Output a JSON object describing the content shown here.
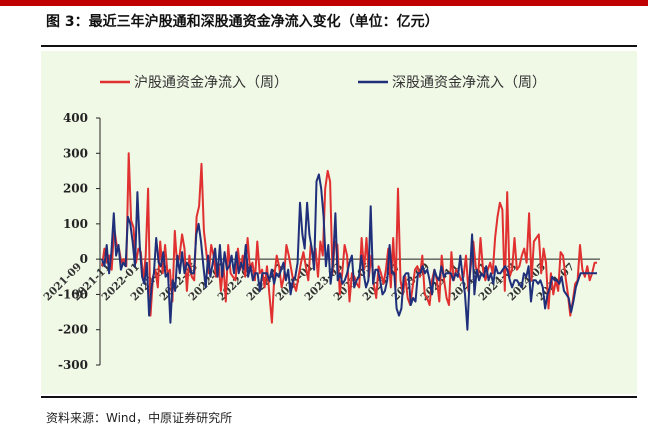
{
  "figure": {
    "title": "图 3：最近三年沪股通和深股通资金净流入变化（单位：亿元）",
    "source": "资料来源：Wind，中原证券研究所"
  },
  "chart_data": {
    "type": "line",
    "title": "",
    "xlabel": "",
    "ylabel": "",
    "ylim": [
      -300,
      400
    ],
    "yticks": [
      400,
      300,
      200,
      100,
      0,
      -100,
      -200,
      -300
    ],
    "legend_position": "top",
    "x_tick_labels": [
      "2021-09",
      "2021-11",
      "2022-01",
      "2022-03",
      "2022-05",
      "2022-07",
      "2022-09",
      "2022-11",
      "2023-01",
      "2023-03",
      "2023-05",
      "2023-07",
      "2023-09",
      "2023-11",
      "2024-01",
      "2024-03",
      "2024-05",
      "2024-07"
    ],
    "series": [
      {
        "name": "沪股通资金净流入（周）",
        "color": "#e03030",
        "values": [
          -20,
          30,
          -10,
          10,
          -30,
          90,
          40,
          30,
          -10,
          0,
          -20,
          300,
          110,
          90,
          -10,
          30,
          20,
          -60,
          10,
          200,
          -160,
          -50,
          -30,
          -80,
          50,
          -40,
          40,
          -40,
          -30,
          -120,
          80,
          -20,
          10,
          70,
          30,
          -90,
          10,
          -50,
          -60,
          120,
          150,
          270,
          80,
          20,
          -40,
          40,
          10,
          -50,
          -10,
          -90,
          -10,
          -120,
          40,
          -40,
          -50,
          -60,
          30,
          -30,
          10,
          -50,
          60,
          -30,
          -10,
          -60,
          50,
          -40,
          -30,
          -80,
          -20,
          -100,
          -180,
          -50,
          10,
          -20,
          -80,
          -50,
          40,
          10,
          -30,
          -70,
          -90,
          -50,
          -10,
          20,
          -20,
          -60,
          40,
          10,
          30,
          -50,
          50,
          10,
          200,
          250,
          220,
          -40,
          50,
          40,
          -100,
          -40,
          40,
          10,
          -120,
          -40,
          -50,
          -70,
          -80,
          60,
          -30,
          60,
          -50,
          10,
          -70,
          -110,
          -20,
          -40,
          -70,
          -30,
          30,
          -80,
          60,
          -80,
          200,
          -60,
          -100,
          -50,
          -110,
          -130,
          -80,
          -30,
          -20,
          -50,
          10,
          -100,
          -110,
          -130,
          -60,
          -30,
          -60,
          -120,
          10,
          -60,
          -110,
          -130,
          20,
          -60,
          -30,
          -40,
          -60,
          -50,
          10,
          -90,
          -20,
          50,
          -20,
          -50,
          60,
          -30,
          -60,
          -30,
          -10,
          -40,
          60,
          120,
          160,
          140,
          -90,
          190,
          -50,
          -30,
          60,
          -30,
          -20,
          10,
          30,
          -10,
          130,
          -60,
          50,
          60,
          70,
          -40,
          30,
          -10,
          -140,
          -40,
          -100,
          -60,
          -90,
          20,
          10,
          -50,
          -100,
          -160,
          -120,
          -70,
          -60,
          40,
          -30,
          -50,
          -20,
          -60,
          -40,
          -10,
          -10
        ]
      },
      {
        "name": "深股通资金净流入（周）",
        "color": "#1f2f7a",
        "values": [
          0,
          -20,
          40,
          -40,
          20,
          130,
          10,
          40,
          -30,
          -10,
          -20,
          120,
          100,
          50,
          -20,
          190,
          40,
          -50,
          -70,
          -10,
          -160,
          -80,
          -40,
          60,
          -10,
          -20,
          20,
          -50,
          -40,
          -180,
          -60,
          -90,
          10,
          -40,
          20,
          -40,
          -10,
          -20,
          -40,
          -40,
          70,
          100,
          50,
          -20,
          -80,
          10,
          -50,
          -10,
          30,
          -50,
          40,
          -50,
          20,
          -30,
          -20,
          10,
          -40,
          20,
          -40,
          -10,
          -30,
          40,
          -50,
          -20,
          -60,
          -40,
          -40,
          -90,
          -40,
          -40,
          -40,
          -60,
          -30,
          -70,
          -40,
          -50,
          -30,
          -10,
          -60,
          -30,
          -100,
          -60,
          -50,
          -10,
          160,
          70,
          30,
          160,
          70,
          30,
          -30,
          220,
          240,
          200,
          120,
          -20,
          40,
          -70,
          -10,
          130,
          -60,
          -40,
          -70,
          -60,
          -40,
          -10,
          10,
          -80,
          -60,
          -50,
          10,
          -40,
          -80,
          -60,
          150,
          -70,
          -30,
          -30,
          -60,
          -100,
          -90,
          -60,
          40,
          -40,
          -40,
          -140,
          -160,
          -140,
          -50,
          -40,
          -40,
          -130,
          -110,
          -120,
          -40,
          -40,
          -20,
          -40,
          -30,
          -60,
          -100,
          -30,
          -50,
          -60,
          -20,
          -50,
          -40,
          -40,
          -40,
          -60,
          -40,
          -50,
          10,
          -50,
          -100,
          -200,
          -50,
          70,
          -100,
          -30,
          -60,
          -40,
          -50,
          -20,
          -60,
          -40,
          -70,
          -20,
          -40,
          -40,
          -30,
          -20,
          -30,
          -60,
          -80,
          -60,
          -60,
          -70,
          -80,
          -40,
          -50,
          -20,
          -120,
          -60,
          -60,
          -70,
          -60,
          -80,
          -140,
          -100,
          -80,
          -50,
          -60,
          -60,
          -70,
          -50,
          -90,
          -100,
          -110,
          -150,
          -120,
          -80,
          -60,
          -40,
          -40,
          -40,
          -40,
          -40,
          -40,
          -40,
          -40
        ]
      }
    ]
  }
}
